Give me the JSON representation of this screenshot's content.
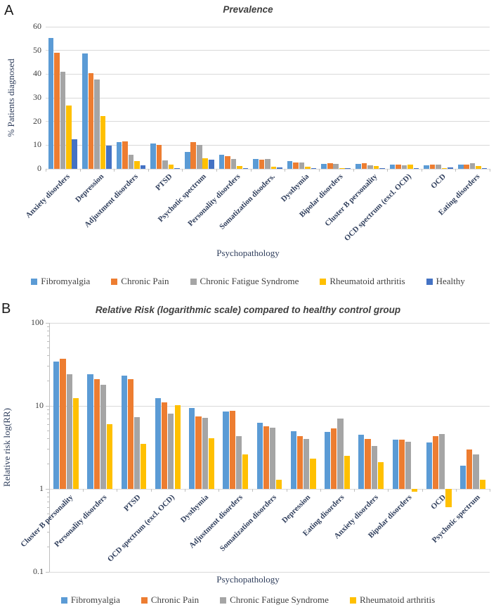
{
  "figure": {
    "panels": {
      "a": {
        "letter": "A",
        "title": "Prevalence",
        "xlabel": "Psychopathology",
        "ylabel": "% Patients diagnosed"
      },
      "b": {
        "letter": "B",
        "title": "Relative Risk (logarithmic scale) compared to healthy control group",
        "xlabel": "Psychopathology",
        "ylabel": "Relative risk log(RR)"
      }
    }
  },
  "chart_data": [
    {
      "type": "bar",
      "panel": "A",
      "title": "Prevalence",
      "xlabel": "Psychopathology",
      "ylabel": "% Patients diagnosed",
      "ylim": [
        0,
        60
      ],
      "yticks": [
        0,
        10,
        20,
        30,
        40,
        50,
        60
      ],
      "grid": true,
      "legend_position": "bottom",
      "categories": [
        "Anxiety disorders",
        "Depression",
        "Adjustment disorders",
        "PTSD",
        "Psychotic spectrum",
        "Personality disorders",
        "Somatization disoders.",
        "Dysthymia",
        "Bipolar disorders",
        "Cluster B personality",
        "OCD spectrum (excl. OCD)",
        "OCD",
        "Eating disorders"
      ],
      "series": [
        {
          "name": "Fibromyalgia",
          "color": "#5B9BD5",
          "values": [
            55.3,
            48.7,
            11.3,
            10.8,
            7.0,
            5.9,
            4.2,
            3.4,
            2.0,
            2.1,
            1.8,
            1.5,
            1.7
          ]
        },
        {
          "name": "Chronic Pain",
          "color": "#ED7D31",
          "values": [
            48.9,
            40.3,
            11.6,
            10.2,
            11.4,
            5.3,
            4.0,
            2.8,
            2.3,
            2.3,
            1.9,
            1.9,
            1.9
          ]
        },
        {
          "name": "Chronic Fatigue Syndrome",
          "color": "#A5A5A5",
          "values": [
            41.0,
            37.6,
            5.8,
            3.5,
            10.1,
            4.2,
            4.1,
            2.8,
            2.2,
            1.6,
            1.4,
            1.9,
            2.3
          ]
        },
        {
          "name": "Rheumatoid arthritis",
          "color": "#FFC000",
          "values": [
            26.8,
            22.4,
            3.4,
            1.8,
            4.6,
            1.2,
            0.9,
            1.0,
            0.3,
            1.2,
            1.9,
            0.2,
            1.1
          ]
        },
        {
          "name": "Healthy",
          "color": "#4472C4",
          "values": [
            12.4,
            9.7,
            1.4,
            0.4,
            3.8,
            0.3,
            0.6,
            0.3,
            0.2,
            0.1,
            0.1,
            0.5,
            0.1
          ]
        }
      ]
    },
    {
      "type": "bar",
      "panel": "B",
      "yscale": "log",
      "title": "Relative Risk (logarithmic scale) compared to healthy control group",
      "xlabel": "Psychopathology",
      "ylabel": "Relative risk log(RR)",
      "ylim": [
        0.1,
        100
      ],
      "yticks": [
        100,
        10,
        1,
        0.1
      ],
      "baseline": 1,
      "grid": true,
      "legend_position": "bottom",
      "categories": [
        "Cluster B personality",
        "Personality disorders",
        "PTSD",
        "OCD spectrum (excl. OCD)",
        "Dysthymia",
        "Adjustment disorders",
        "Somatization disorders",
        "Depression",
        "Eating disorders",
        "Anxiety disorders",
        "Bipolar disorders",
        "OCD",
        "Psychotic spectrum"
      ],
      "series": [
        {
          "name": "Fibromyalgia",
          "color": "#5B9BD5",
          "values": [
            34,
            24,
            23,
            12.5,
            9.5,
            8.5,
            6.3,
            5.0,
            4.9,
            4.5,
            3.9,
            3.6,
            1.9
          ]
        },
        {
          "name": "Chronic Pain",
          "color": "#ED7D31",
          "values": [
            37,
            21,
            21,
            11,
            7.5,
            8.7,
            5.7,
            4.3,
            5.4,
            4.0,
            3.9,
            4.3,
            3.0
          ]
        },
        {
          "name": "Chronic Fatigue Syndrome",
          "color": "#A5A5A5",
          "values": [
            24,
            18,
            7.3,
            8.0,
            7.2,
            4.3,
            5.5,
            4.0,
            7.0,
            3.3,
            3.7,
            4.6,
            2.6
          ]
        },
        {
          "name": "Rheumatoid arthritis",
          "color": "#FFC000",
          "values": [
            12.3,
            6.0,
            3.5,
            10.2,
            4.1,
            2.6,
            1.3,
            2.3,
            2.5,
            2.1,
            0.93,
            0.6,
            1.3
          ]
        }
      ]
    }
  ]
}
